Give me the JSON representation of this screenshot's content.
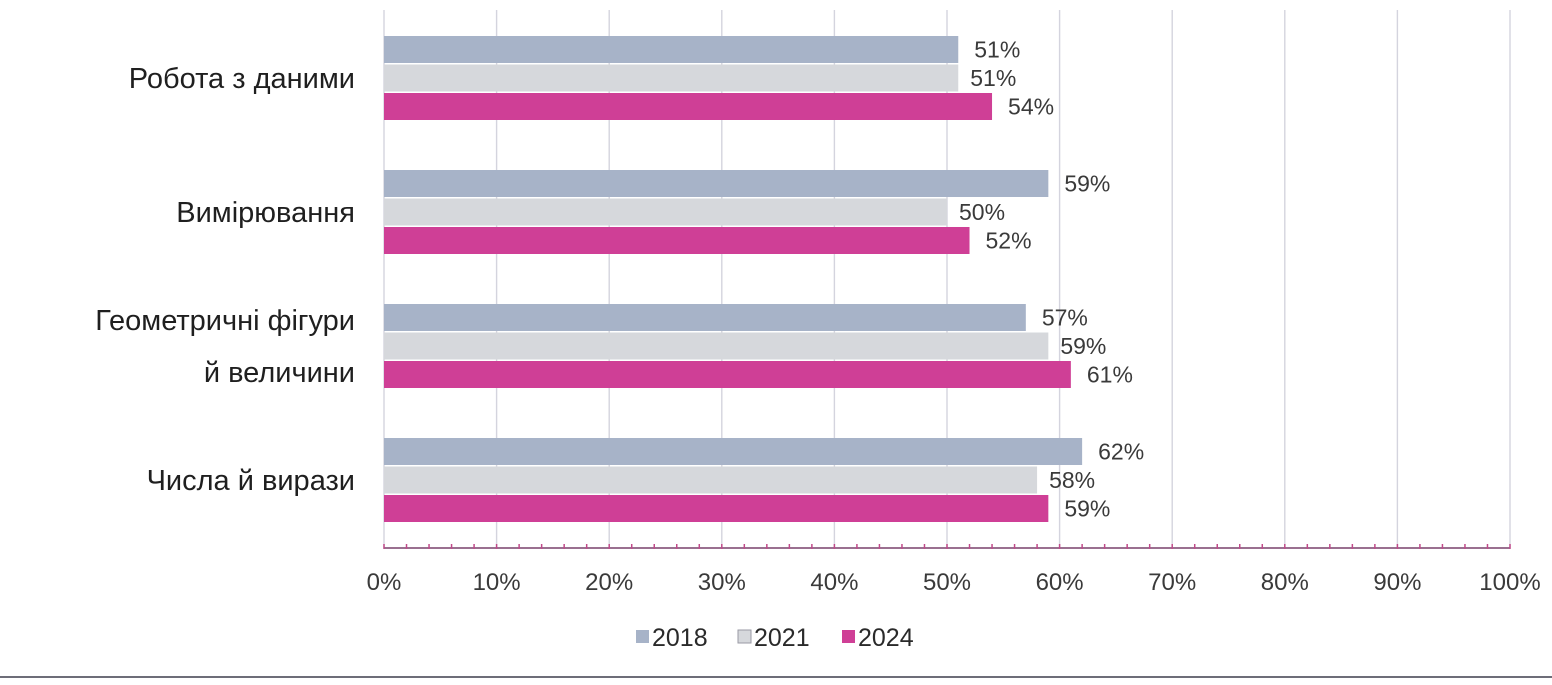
{
  "chart_data": {
    "type": "bar",
    "orientation": "horizontal",
    "title": "",
    "xlabel": "",
    "ylabel": "",
    "categories": [
      [
        "Робота з даними"
      ],
      [
        "Вимірювання"
      ],
      [
        "Геометричні фігури",
        "й величини"
      ],
      [
        "Числа й вирази"
      ]
    ],
    "series": [
      {
        "name": "2018",
        "color": "#a7b3c8",
        "values": [
          51,
          59,
          57,
          62
        ],
        "labels": [
          "51%",
          "59%",
          "57%",
          "62%"
        ]
      },
      {
        "name": "2021",
        "color": "#d6d8dc",
        "values": [
          51,
          50,
          59,
          58
        ],
        "labels": [
          "51%",
          "50%",
          "59%",
          "58%"
        ]
      },
      {
        "name": "2024",
        "color": "#cf3f96",
        "values": [
          54,
          52,
          61,
          59
        ],
        "labels": [
          "54%",
          "52%",
          "61%",
          "59%"
        ]
      }
    ],
    "xlim": [
      0,
      100
    ],
    "xticks": [
      0,
      10,
      20,
      30,
      40,
      50,
      60,
      70,
      80,
      90,
      100
    ],
    "xtick_labels": [
      "0%",
      "10%",
      "20%",
      "30%",
      "40%",
      "50%",
      "60%",
      "70%",
      "80%",
      "90%",
      "100%"
    ],
    "grid": true,
    "legend_position": "bottom-center"
  }
}
